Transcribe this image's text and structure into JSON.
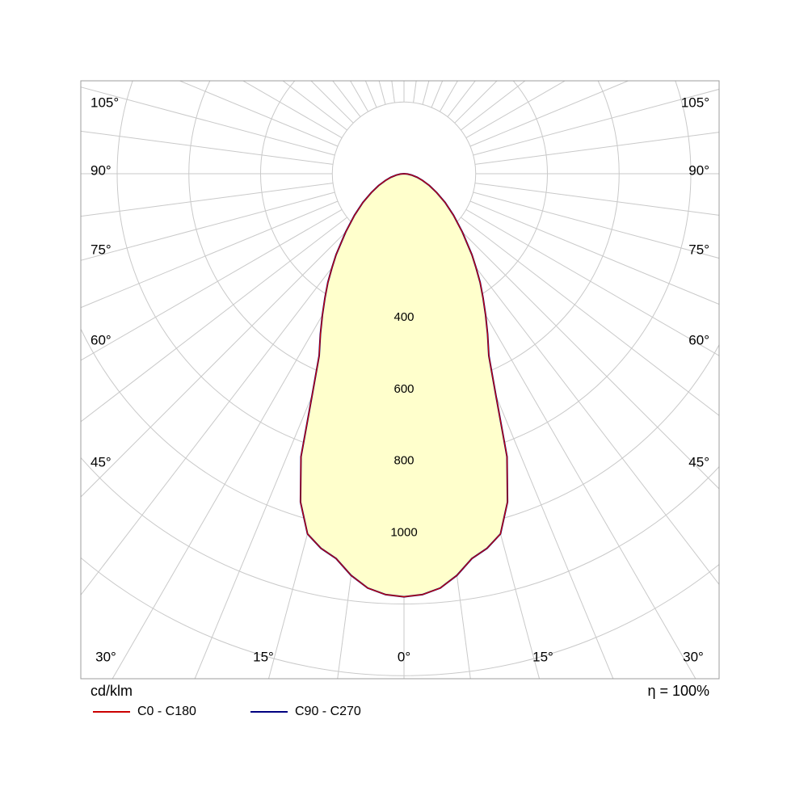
{
  "chart_data": {
    "type": "polar",
    "description": "Luminaire polar luminous intensity distribution curve",
    "unit_label": "cd/klm",
    "efficiency_label": "η = 100%",
    "beam_fill_color": "#ffffcc",
    "grid": {
      "color": "#c9c9c9",
      "border_color": "#9c9c9c",
      "ring_step": 200,
      "ring_values": [
        200,
        400,
        600,
        800,
        1000,
        1200,
        1400
      ],
      "labeled_rings": [
        400,
        600,
        800,
        1000
      ],
      "ray_step_deg": 7.5
    },
    "angle_tick_labels": {
      "left": [
        "105°",
        "90°",
        "75°",
        "60°",
        "45°"
      ],
      "bottom": [
        "30°",
        "15°",
        "0°",
        "15°",
        "30°"
      ],
      "right": [
        "105°",
        "90°",
        "75°",
        "60°",
        "45°"
      ]
    },
    "max_intensity_cd_per_klm": 1180,
    "series": [
      {
        "name": "C0 - C180",
        "color": "#cc0000",
        "gamma_deg": [
          0,
          2.5,
          5,
          7.5,
          10,
          12.5,
          15,
          17.5,
          20,
          22.5,
          25,
          27.5,
          30,
          32.5,
          35,
          37.5,
          40,
          45,
          50,
          55,
          60,
          65,
          70,
          75,
          80,
          85,
          90
        ],
        "intensity_cd_per_klm": [
          1180,
          1175,
          1160,
          1130,
          1090,
          1070,
          1040,
          960,
          840,
          670,
          560,
          505,
          455,
          410,
          370,
          330,
          295,
          230,
          180,
          140,
          105,
          78,
          55,
          38,
          22,
          10,
          0
        ]
      },
      {
        "name": "C90 - C270",
        "color": "#000080",
        "gamma_deg": [
          0,
          2.5,
          5,
          7.5,
          10,
          12.5,
          15,
          17.5,
          20,
          22.5,
          25,
          27.5,
          30,
          32.5,
          35,
          37.5,
          40,
          45,
          50,
          55,
          60,
          65,
          70,
          75,
          80,
          85,
          90
        ],
        "intensity_cd_per_klm": [
          1180,
          1175,
          1160,
          1130,
          1090,
          1070,
          1040,
          960,
          840,
          670,
          560,
          505,
          455,
          410,
          370,
          330,
          295,
          230,
          180,
          140,
          105,
          78,
          55,
          38,
          22,
          10,
          0
        ]
      }
    ]
  },
  "legend": {
    "unit_label": "cd/klm",
    "efficiency": "η = 100%",
    "items": [
      {
        "label": "C0 - C180",
        "color": "#cc0000"
      },
      {
        "label": "C90 - C270",
        "color": "#000080"
      }
    ]
  }
}
